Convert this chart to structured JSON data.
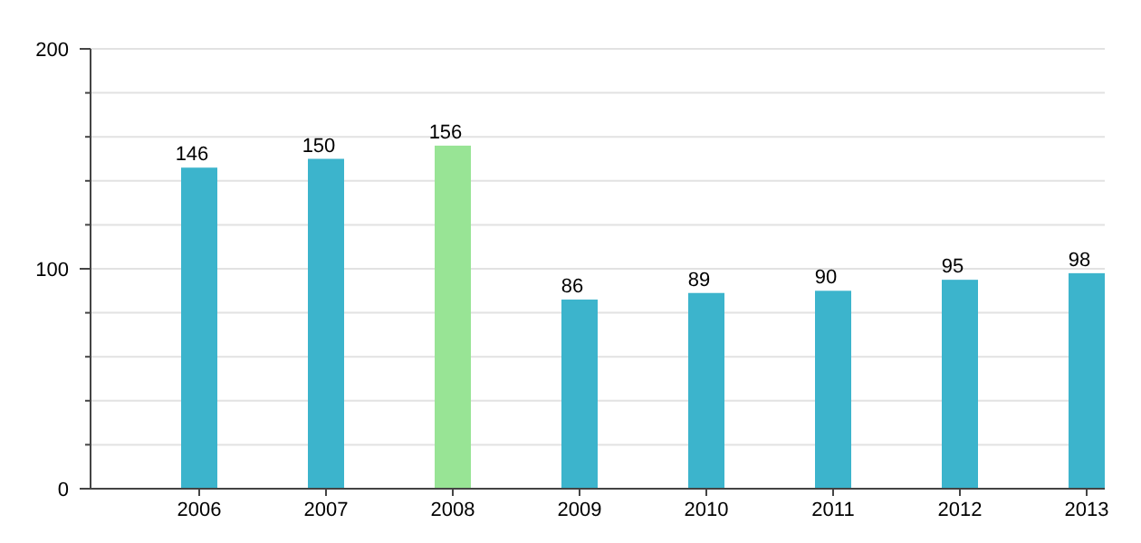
{
  "chart_data": {
    "type": "bar",
    "categories": [
      "2006",
      "2007",
      "2008",
      "2009",
      "2010",
      "2011",
      "2012",
      "2013"
    ],
    "values": [
      146,
      150,
      156,
      86,
      89,
      90,
      95,
      98
    ],
    "colors": [
      "#3cb4cc",
      "#3cb4cc",
      "#98e495",
      "#3cb4cc",
      "#3cb4cc",
      "#3cb4cc",
      "#3cb4cc",
      "#3cb4cc"
    ],
    "ylim": [
      0,
      200
    ],
    "yticks": [
      0,
      {
        "value": 20,
        "label": null
      },
      {
        "value": 40,
        "label": null
      },
      {
        "value": 60,
        "label": null
      },
      {
        "value": 80,
        "label": null
      },
      100,
      {
        "value": 120,
        "label": null
      },
      {
        "value": 140,
        "label": null
      },
      {
        "value": 160,
        "label": null
      },
      {
        "value": 180,
        "label": null
      },
      200
    ],
    "grid": true,
    "data_labels": true
  }
}
